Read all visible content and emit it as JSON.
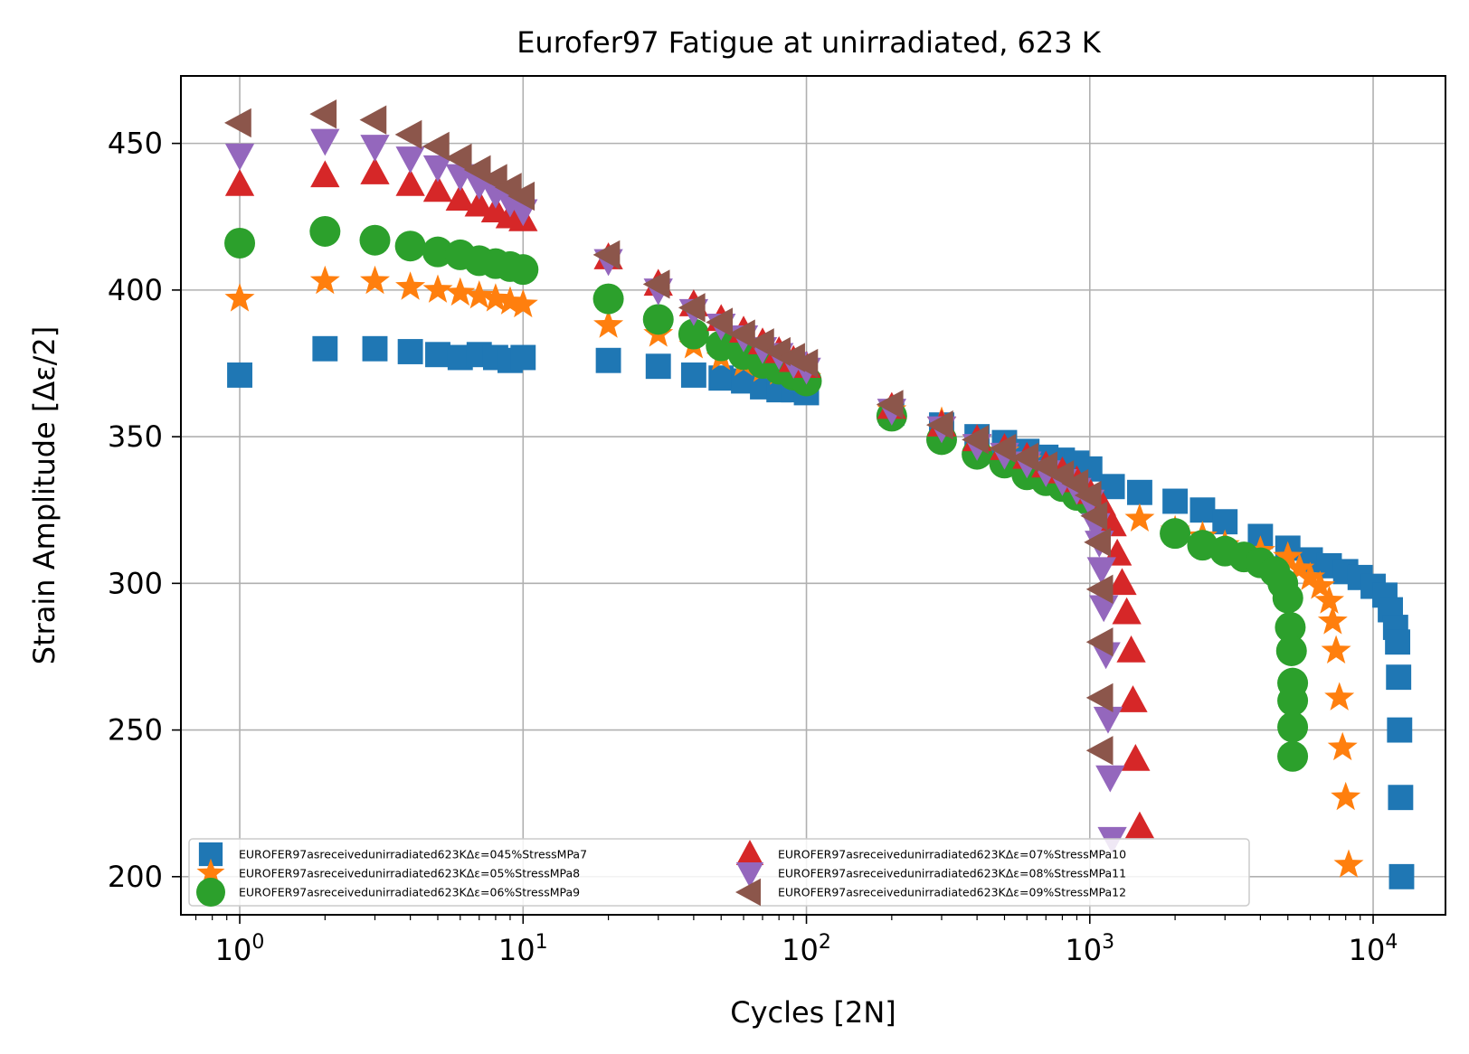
{
  "chart_data": {
    "type": "scatter",
    "title": "Eurofer97 Fatigue at unirradiated, 623 K",
    "xlabel": "Cycles [2N]",
    "ylabel": "Strain Amplitude [Δε/2]",
    "xscale": "log",
    "xlim": [
      0.62,
      18000
    ],
    "ylim": [
      187,
      473
    ],
    "xticks": [
      {
        "value": 1,
        "base": "10",
        "exp": "0"
      },
      {
        "value": 10,
        "base": "10",
        "exp": "1"
      },
      {
        "value": 100,
        "base": "10",
        "exp": "2"
      },
      {
        "value": 1000,
        "base": "10",
        "exp": "3"
      },
      {
        "value": 10000,
        "base": "10",
        "exp": "4"
      }
    ],
    "yticks": [
      "200",
      "250",
      "300",
      "350",
      "400",
      "450"
    ],
    "grid": true,
    "legend_position": "lower-left",
    "legend_columns": 2,
    "series": [
      {
        "name": "EUROFER97asreceivedunirradiated623KΔε=045%StressMPa7",
        "color": "#1f77b4",
        "marker": "square",
        "points": [
          [
            1,
            371
          ],
          [
            2,
            380
          ],
          [
            3,
            380
          ],
          [
            4,
            379
          ],
          [
            5,
            378
          ],
          [
            6,
            377
          ],
          [
            7,
            378
          ],
          [
            8,
            377
          ],
          [
            9,
            376
          ],
          [
            10,
            377
          ],
          [
            20,
            376
          ],
          [
            30,
            374
          ],
          [
            40,
            371
          ],
          [
            50,
            370
          ],
          [
            60,
            369
          ],
          [
            70,
            367
          ],
          [
            80,
            366
          ],
          [
            90,
            366
          ],
          [
            100,
            365
          ],
          [
            200,
            358
          ],
          [
            300,
            354
          ],
          [
            400,
            350
          ],
          [
            500,
            348
          ],
          [
            600,
            345
          ],
          [
            700,
            343
          ],
          [
            800,
            342
          ],
          [
            900,
            341
          ],
          [
            1000,
            339
          ],
          [
            1200,
            333
          ],
          [
            1500,
            331
          ],
          [
            2000,
            328
          ],
          [
            2500,
            325
          ],
          [
            3000,
            321
          ],
          [
            4000,
            316
          ],
          [
            5000,
            312
          ],
          [
            6000,
            308
          ],
          [
            7000,
            306
          ],
          [
            8000,
            304
          ],
          [
            9000,
            302
          ],
          [
            10000,
            299
          ],
          [
            11000,
            296
          ],
          [
            11500,
            291
          ],
          [
            12000,
            285
          ],
          [
            12200,
            280
          ],
          [
            12300,
            268
          ],
          [
            12400,
            250
          ],
          [
            12500,
            227
          ],
          [
            12600,
            200
          ]
        ]
      },
      {
        "name": "EUROFER97asreceivedunirradiated623KΔε=05%StressMPa8",
        "color": "#ff7f0e",
        "marker": "star",
        "points": [
          [
            1,
            397
          ],
          [
            2,
            403
          ],
          [
            3,
            403
          ],
          [
            4,
            401
          ],
          [
            5,
            400
          ],
          [
            6,
            399
          ],
          [
            7,
            398
          ],
          [
            8,
            397
          ],
          [
            9,
            396
          ],
          [
            10,
            395
          ],
          [
            20,
            388
          ],
          [
            30,
            385
          ],
          [
            40,
            381
          ],
          [
            50,
            377
          ],
          [
            60,
            375
          ],
          [
            70,
            373
          ],
          [
            80,
            372
          ],
          [
            90,
            371
          ],
          [
            100,
            370
          ],
          [
            200,
            359
          ],
          [
            300,
            355
          ],
          [
            400,
            349
          ],
          [
            500,
            345
          ],
          [
            600,
            342
          ],
          [
            700,
            339
          ],
          [
            800,
            336
          ],
          [
            900,
            333
          ],
          [
            1000,
            330
          ],
          [
            1500,
            322
          ],
          [
            2000,
            318
          ],
          [
            2500,
            316
          ],
          [
            3000,
            313
          ],
          [
            4000,
            311
          ],
          [
            5000,
            309
          ],
          [
            5500,
            305
          ],
          [
            6000,
            302
          ],
          [
            6500,
            299
          ],
          [
            7000,
            294
          ],
          [
            7200,
            287
          ],
          [
            7400,
            277
          ],
          [
            7600,
            261
          ],
          [
            7800,
            244
          ],
          [
            8000,
            227
          ],
          [
            8200,
            204
          ]
        ]
      },
      {
        "name": "EUROFER97asreceivedunirradiated623KΔε=06%StressMPa9",
        "color": "#2ca02c",
        "marker": "circle",
        "points": [
          [
            1,
            416
          ],
          [
            2,
            420
          ],
          [
            3,
            417
          ],
          [
            4,
            415
          ],
          [
            5,
            413
          ],
          [
            6,
            412
          ],
          [
            7,
            410
          ],
          [
            8,
            409
          ],
          [
            9,
            408
          ],
          [
            10,
            407
          ],
          [
            20,
            397
          ],
          [
            30,
            390
          ],
          [
            40,
            385
          ],
          [
            50,
            381
          ],
          [
            60,
            378
          ],
          [
            70,
            375
          ],
          [
            80,
            373
          ],
          [
            90,
            371
          ],
          [
            100,
            369
          ],
          [
            200,
            357
          ],
          [
            300,
            349
          ],
          [
            400,
            344
          ],
          [
            500,
            341
          ],
          [
            600,
            337
          ],
          [
            700,
            335
          ],
          [
            800,
            333
          ],
          [
            900,
            330
          ],
          [
            1000,
            328
          ],
          [
            2000,
            317
          ],
          [
            2500,
            313
          ],
          [
            3000,
            311
          ],
          [
            3500,
            309
          ],
          [
            4000,
            307
          ],
          [
            4500,
            304
          ],
          [
            4800,
            300
          ],
          [
            5000,
            295
          ],
          [
            5100,
            285
          ],
          [
            5150,
            277
          ],
          [
            5200,
            266
          ],
          [
            5200,
            260
          ],
          [
            5200,
            251
          ],
          [
            5200,
            241
          ]
        ]
      },
      {
        "name": "EUROFER97asreceivedunirradiated623KΔε=07%StressMPa10",
        "color": "#d62728",
        "marker": "triangle-up",
        "points": [
          [
            1,
            436
          ],
          [
            2,
            439
          ],
          [
            3,
            440
          ],
          [
            4,
            436
          ],
          [
            5,
            434
          ],
          [
            6,
            431
          ],
          [
            7,
            429
          ],
          [
            8,
            427
          ],
          [
            9,
            425
          ],
          [
            10,
            424
          ],
          [
            20,
            411
          ],
          [
            30,
            402
          ],
          [
            40,
            395
          ],
          [
            50,
            390
          ],
          [
            60,
            386
          ],
          [
            70,
            382
          ],
          [
            80,
            379
          ],
          [
            90,
            376
          ],
          [
            100,
            374
          ],
          [
            200,
            360
          ],
          [
            300,
            354
          ],
          [
            400,
            349
          ],
          [
            500,
            346
          ],
          [
            600,
            343
          ],
          [
            700,
            340
          ],
          [
            800,
            338
          ],
          [
            900,
            335
          ],
          [
            1000,
            331
          ],
          [
            1100,
            327
          ],
          [
            1200,
            320
          ],
          [
            1250,
            310
          ],
          [
            1300,
            300
          ],
          [
            1350,
            290
          ],
          [
            1400,
            277
          ],
          [
            1420,
            260
          ],
          [
            1450,
            240
          ],
          [
            1500,
            217
          ]
        ]
      },
      {
        "name": "EUROFER97asreceivedunirradiated623KΔε=08%StressMPa11",
        "color": "#9467bd",
        "marker": "triangle-down",
        "points": [
          [
            1,
            446
          ],
          [
            2,
            451
          ],
          [
            3,
            449
          ],
          [
            4,
            445
          ],
          [
            5,
            442
          ],
          [
            6,
            439
          ],
          [
            7,
            436
          ],
          [
            8,
            433
          ],
          [
            9,
            430
          ],
          [
            10,
            427
          ],
          [
            20,
            410
          ],
          [
            30,
            400
          ],
          [
            40,
            393
          ],
          [
            50,
            388
          ],
          [
            60,
            384
          ],
          [
            70,
            380
          ],
          [
            80,
            378
          ],
          [
            90,
            375
          ],
          [
            100,
            373
          ],
          [
            200,
            359
          ],
          [
            300,
            353
          ],
          [
            400,
            347
          ],
          [
            500,
            344
          ],
          [
            600,
            341
          ],
          [
            700,
            338
          ],
          [
            800,
            335
          ],
          [
            900,
            332
          ],
          [
            1000,
            328
          ],
          [
            1050,
            320
          ],
          [
            1080,
            314
          ],
          [
            1100,
            305
          ],
          [
            1120,
            292
          ],
          [
            1140,
            276
          ],
          [
            1160,
            254
          ],
          [
            1180,
            234
          ],
          [
            1200,
            213
          ]
        ]
      },
      {
        "name": "EUROFER97asreceivedunirradiated623KΔε=09%StressMPa12",
        "color": "#8c564b",
        "marker": "triangle-left",
        "points": [
          [
            1,
            457
          ],
          [
            2,
            460
          ],
          [
            3,
            458
          ],
          [
            4,
            453
          ],
          [
            5,
            449
          ],
          [
            6,
            445
          ],
          [
            7,
            441
          ],
          [
            8,
            438
          ],
          [
            9,
            435
          ],
          [
            10,
            432
          ],
          [
            20,
            412
          ],
          [
            30,
            402
          ],
          [
            40,
            394
          ],
          [
            50,
            389
          ],
          [
            60,
            385
          ],
          [
            70,
            382
          ],
          [
            80,
            379
          ],
          [
            90,
            377
          ],
          [
            100,
            375
          ],
          [
            200,
            361
          ],
          [
            300,
            354
          ],
          [
            400,
            349
          ],
          [
            500,
            346
          ],
          [
            600,
            343
          ],
          [
            700,
            340
          ],
          [
            800,
            337
          ],
          [
            900,
            334
          ],
          [
            1000,
            330
          ],
          [
            1050,
            323
          ],
          [
            1080,
            314
          ],
          [
            1100,
            298
          ],
          [
            1100,
            280
          ],
          [
            1100,
            261
          ],
          [
            1100,
            243
          ]
        ]
      }
    ]
  }
}
